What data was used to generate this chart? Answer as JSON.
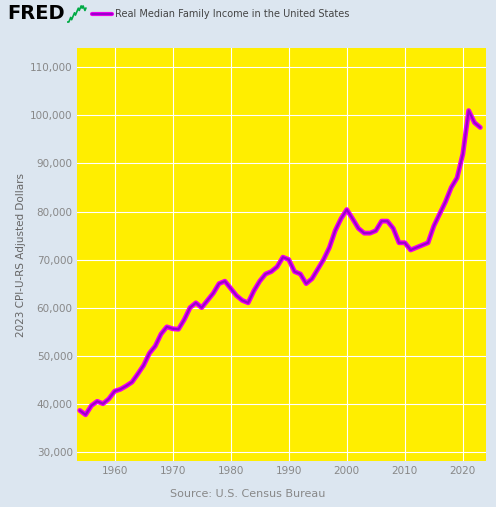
{
  "title": "Real Median Family Income in the United States",
  "ylabel": "2023 CPI-U-RS Adjusted Dollars",
  "source": "Source: U.S. Census Bureau",
  "bg_color": "#dce6f0",
  "plot_bg_color": "#ffee00",
  "line_color": "#9900cc",
  "line_outer_color": "#ee00ee",
  "ylim": [
    28000,
    114000
  ],
  "yticks": [
    30000,
    40000,
    50000,
    60000,
    70000,
    80000,
    90000,
    100000,
    110000
  ],
  "xticks": [
    1960,
    1970,
    1980,
    1990,
    2000,
    2010,
    2020
  ],
  "xlim": [
    1953.5,
    2024
  ],
  "years": [
    1954,
    1955,
    1956,
    1957,
    1958,
    1959,
    1960,
    1961,
    1962,
    1963,
    1964,
    1965,
    1966,
    1967,
    1968,
    1969,
    1970,
    1971,
    1972,
    1973,
    1974,
    1975,
    1976,
    1977,
    1978,
    1979,
    1980,
    1981,
    1982,
    1983,
    1984,
    1985,
    1986,
    1987,
    1988,
    1989,
    1990,
    1991,
    1992,
    1993,
    1994,
    1995,
    1996,
    1997,
    1998,
    1999,
    2000,
    2001,
    2002,
    2003,
    2004,
    2005,
    2006,
    2007,
    2008,
    2009,
    2010,
    2011,
    2012,
    2013,
    2014,
    2015,
    2016,
    2017,
    2018,
    2019,
    2020,
    2021,
    2022,
    2023
  ],
  "values": [
    38600,
    37700,
    39600,
    40500,
    40000,
    41000,
    42600,
    43000,
    43700,
    44500,
    46200,
    48000,
    50500,
    52000,
    54500,
    56000,
    55600,
    55500,
    57500,
    60000,
    61000,
    60000,
    61500,
    63000,
    65000,
    65500,
    64000,
    62500,
    61500,
    61000,
    63500,
    65500,
    67000,
    67500,
    68500,
    70500,
    70000,
    67500,
    67000,
    65000,
    66000,
    68000,
    70000,
    72500,
    76000,
    78500,
    80400,
    78500,
    76500,
    75500,
    75500,
    76000,
    78000,
    78000,
    76500,
    73500,
    73500,
    72000,
    72500,
    73000,
    73500,
    77000,
    79500,
    82000,
    85000,
    87000,
    92000,
    101000,
    98500,
    97500
  ],
  "figsize": [
    4.96,
    5.07
  ],
  "dpi": 100,
  "fred_fontsize": 14,
  "legend_fontsize": 7,
  "tick_fontsize": 7.5,
  "ylabel_fontsize": 7.5,
  "source_fontsize": 8
}
